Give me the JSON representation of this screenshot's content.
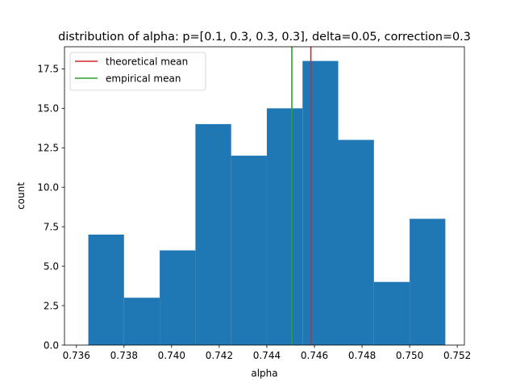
{
  "chart_data": {
    "type": "bar",
    "title": "distribution of alpha: p=[0.1, 0.3, 0.3, 0.3], delta=0.05, correction=0.3",
    "xlabel": "alpha",
    "ylabel": "count",
    "xlim": [
      0.7355,
      0.7523
    ],
    "ylim": [
      0,
      18.9
    ],
    "grid": false,
    "bin_edges": [
      0.7365,
      0.738,
      0.7395,
      0.741,
      0.7425,
      0.744,
      0.7455,
      0.747,
      0.7485,
      0.75,
      0.7515
    ],
    "values": [
      7,
      3,
      6,
      14,
      12,
      15,
      18,
      13,
      4,
      8
    ],
    "bar_color": "#1f77b4",
    "x_ticks": [
      0.736,
      0.738,
      0.74,
      0.742,
      0.744,
      0.746,
      0.748,
      0.75,
      0.752
    ],
    "x_tick_labels": [
      "0.736",
      "0.738",
      "0.740",
      "0.742",
      "0.744",
      "0.746",
      "0.748",
      "0.750",
      "0.752"
    ],
    "y_ticks": [
      0,
      2.5,
      5,
      7.5,
      10,
      12.5,
      15,
      17.5
    ],
    "y_tick_labels": [
      "0.0",
      "2.5",
      "5.0",
      "7.5",
      "10.0",
      "12.5",
      "15.0",
      "17.5"
    ],
    "vlines": [
      {
        "name": "theoretical mean",
        "x": 0.74585,
        "color": "#d62728"
      },
      {
        "name": "empirical mean",
        "x": 0.74505,
        "color": "#2ca02c"
      }
    ],
    "legend": {
      "placement": "top-left",
      "entries": [
        "theoretical mean",
        "empirical mean"
      ]
    }
  }
}
